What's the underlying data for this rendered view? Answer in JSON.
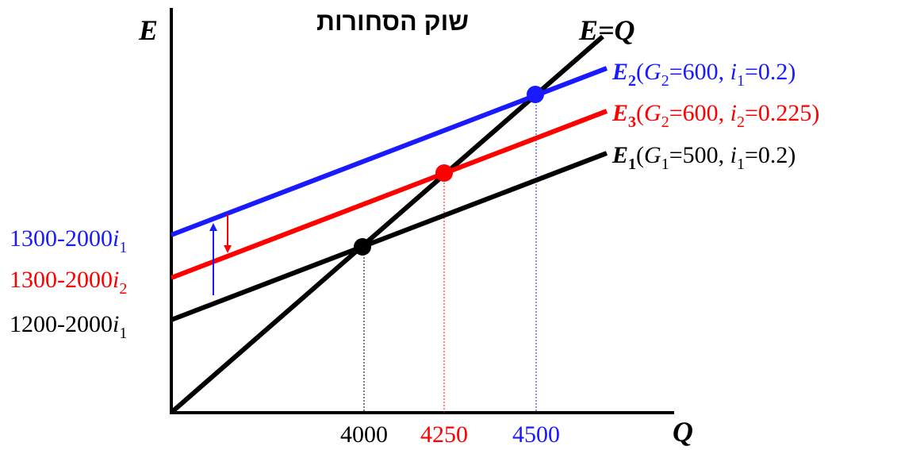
{
  "title": "שוק הסחורות",
  "axes": {
    "y_label": "E",
    "x_label": "Q",
    "diagonal_label": "E=Q"
  },
  "colors": {
    "e1": "#000000",
    "e2": "#1a1aff",
    "e3": "#ff0000"
  },
  "curves": {
    "e1": {
      "name": "E",
      "sub": "1",
      "paren": "(",
      "g": "G",
      "g_sub": "1",
      "g_val": "=500, ",
      "i": "i",
      "i_sub": "1",
      "i_val": "=0.2)"
    },
    "e2": {
      "name": "E",
      "sub": "2",
      "paren": "(",
      "g": "G",
      "g_sub": "2",
      "g_val": "=600, ",
      "i": "i",
      "i_sub": "1",
      "i_val": "=0.2)"
    },
    "e3": {
      "name": "E",
      "sub": "3",
      "paren": "(",
      "g": "G",
      "g_sub": "2",
      "g_val": "=600, ",
      "i": "i",
      "i_sub": "2",
      "i_val": "=0.225)"
    }
  },
  "intercepts": {
    "e2": {
      "text": "1300-2000",
      "i": "i",
      "sub": "1"
    },
    "e3": {
      "text": "1300-2000",
      "i": "i",
      "sub": "2"
    },
    "e1": {
      "text": "1200-2000",
      "i": "i",
      "sub": "1"
    }
  },
  "x_ticks": {
    "e1": "4000",
    "e3": "4250",
    "e2": "4500"
  }
}
